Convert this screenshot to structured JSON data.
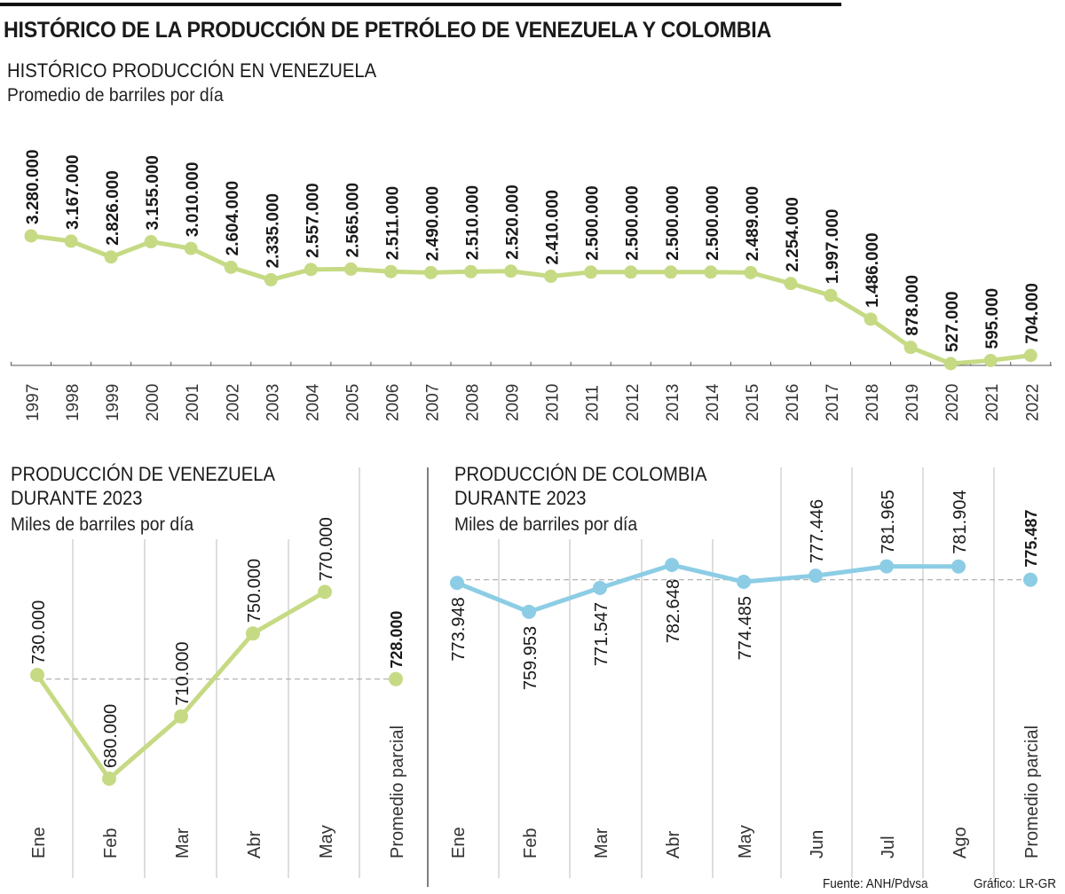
{
  "title": "HISTÓRICO DE LA PRODUCCIÓN DE PETRÓLEO DE VENEZUELA Y COLOMBIA",
  "footer": {
    "source": "Fuente: ANH/Pdvsa",
    "credit": "Gráfico: LR-GR"
  },
  "colors": {
    "venezuela": "#c6da84",
    "colombia": "#8ccde5"
  },
  "chart_data": [
    {
      "type": "line",
      "title": "HISTÓRICO PRODUCCIÓN EN VENEZUELA",
      "subtitle": "Promedio de barriles por día",
      "categories": [
        "1997",
        "1998",
        "1999",
        "2000",
        "2001",
        "2002",
        "2003",
        "2004",
        "2005",
        "2006",
        "2007",
        "2008",
        "2009",
        "2010",
        "2011",
        "2012",
        "2013",
        "2014",
        "2015",
        "2016",
        "2017",
        "2018",
        "2019",
        "2020",
        "2021",
        "2022"
      ],
      "values": [
        3280000,
        3167000,
        2826000,
        3155000,
        3010000,
        2604000,
        2335000,
        2557000,
        2565000,
        2511000,
        2490000,
        2510000,
        2520000,
        2410000,
        2500000,
        2500000,
        2500000,
        2500000,
        2489000,
        2254000,
        1997000,
        1486000,
        878000,
        527000,
        595000,
        704000
      ],
      "labels": [
        "3.280.000",
        "3.167.000",
        "2.826.000",
        "3.155.000",
        "3.010.000",
        "2.604.000",
        "2.335.000",
        "2.557.000",
        "2.565.000",
        "2.511.000",
        "2.490.000",
        "2.510.000",
        "2.520.000",
        "2.410.000",
        "2.500.000",
        "2.500.000",
        "2.500.000",
        "2.500.000",
        "2.489.000",
        "2.254.000",
        "1.997.000",
        "1.486.000",
        "878.000",
        "527.000",
        "595.000",
        "704.000"
      ]
    },
    {
      "type": "line",
      "title_line1": "PRODUCCIÓN DE VENEZUELA",
      "title_line2": "DURANTE 2023",
      "subtitle": "Miles de barriles por día",
      "categories": [
        "Ene",
        "Feb",
        "Mar",
        "Abr",
        "May"
      ],
      "values": [
        730,
        680,
        710,
        750,
        770
      ],
      "labels": [
        "730.000",
        "680.000",
        "710.000",
        "750.000",
        "770.000"
      ],
      "average": {
        "label": "Promedio parcial",
        "value": 728,
        "value_label": "728.000"
      }
    },
    {
      "type": "line",
      "title_line1": "PRODUCCIÓN DE COLOMBIA",
      "title_line2": "DURANTE 2023",
      "subtitle": "Miles de barriles por día",
      "categories": [
        "Ene",
        "Feb",
        "Mar",
        "Abr",
        "May",
        "Jun",
        "Jul",
        "Ago"
      ],
      "values": [
        773.948,
        759.953,
        771.547,
        782.648,
        774.485,
        777.446,
        781.965,
        781.904
      ],
      "labels": [
        "773.948",
        "759.953",
        "771.547",
        "782.648",
        "774.485",
        "777.446",
        "781.965",
        "781.904"
      ],
      "average": {
        "label": "Promedio parcial",
        "value": 775.487,
        "value_label": "775.487"
      }
    }
  ]
}
